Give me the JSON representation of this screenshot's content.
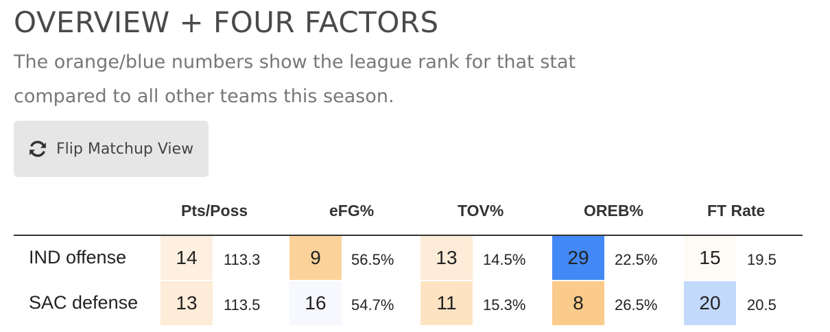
{
  "header": {
    "title": "OVERVIEW + FOUR FACTORS",
    "subtitle": "The orange/blue numbers show the league rank for that stat compared to all other teams this season."
  },
  "toolbar": {
    "flip_label": "Flip Matchup View",
    "flip_icon": "refresh-icon"
  },
  "table": {
    "columns": [
      "Pts/Poss",
      "eFG%",
      "TOV%",
      "OREB%",
      "FT Rate"
    ],
    "rows": [
      {
        "team": "IND offense",
        "cells": [
          {
            "rank": "14",
            "value": "113.3",
            "color": "#fdf0e0"
          },
          {
            "rank": "9",
            "value": "56.5%",
            "color": "#fbd39a"
          },
          {
            "rank": "13",
            "value": "14.5%",
            "color": "#fdecd7"
          },
          {
            "rank": "29",
            "value": "22.5%",
            "color": "#4389f5"
          },
          {
            "rank": "15",
            "value": "19.5",
            "color": "#fefaf4"
          }
        ]
      },
      {
        "team": "SAC defense",
        "cells": [
          {
            "rank": "13",
            "value": "113.5",
            "color": "#fdecd7"
          },
          {
            "rank": "16",
            "value": "54.7%",
            "color": "#f6f8fe"
          },
          {
            "rank": "11",
            "value": "15.3%",
            "color": "#fde3c2"
          },
          {
            "rank": "8",
            "value": "26.5%",
            "color": "#fbcb8b"
          },
          {
            "rank": "20",
            "value": "20.5",
            "color": "#c3d9fb"
          }
        ]
      }
    ]
  }
}
